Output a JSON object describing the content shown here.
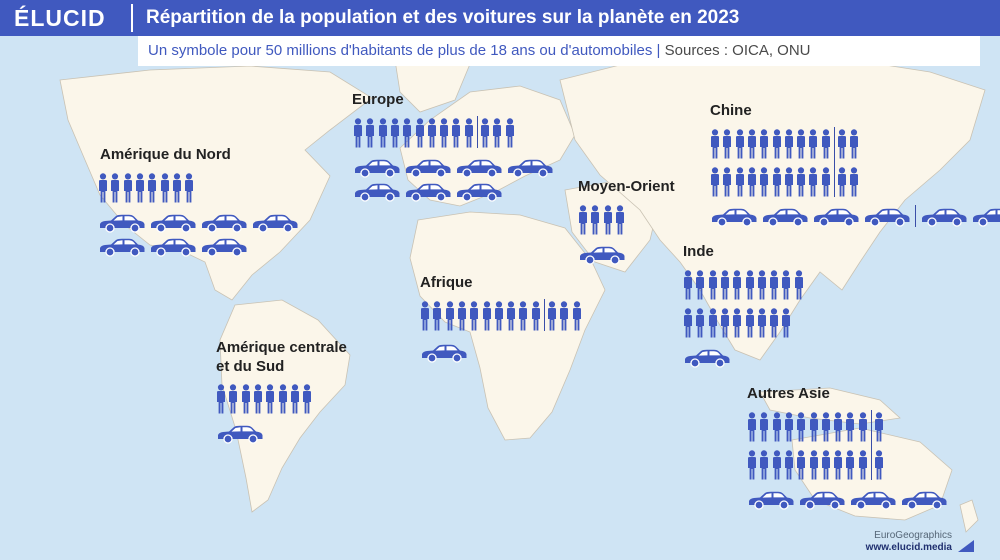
{
  "header": {
    "logo": "ÉLUCID",
    "title": "Répartition de la population et des voitures sur la planète en 2023"
  },
  "subtitle": {
    "text": "Un symbole pour 50 millions d'habitants de plus de 18 ans ou d'automobiles",
    "sources": "Sources : OICA, ONU"
  },
  "colors": {
    "header_bg": "#4059bf",
    "icon": "#4059bf",
    "ocean": "#cfe4f4",
    "land": "#fbf6ea"
  },
  "legend": {
    "unit_millions": 50,
    "person_icon": "person-icon",
    "car_icon": "car-icon"
  },
  "regions": [
    {
      "key": "amerique-du-nord",
      "label": [
        "Amérique du Nord"
      ],
      "people": 8,
      "cars": 7
    },
    {
      "key": "europe",
      "label": [
        "Europe"
      ],
      "people": 13,
      "cars": 7
    },
    {
      "key": "chine",
      "label": [
        "Chine"
      ],
      "people": 24,
      "cars": 6
    },
    {
      "key": "moyen-orient",
      "label": [
        "Moyen-Orient"
      ],
      "people": 4,
      "cars": 1
    },
    {
      "key": "inde",
      "label": [
        "Inde"
      ],
      "people": 19,
      "cars": 1
    },
    {
      "key": "afrique",
      "label": [
        "Afrique"
      ],
      "people": 13,
      "cars": 1
    },
    {
      "key": "amerique-centrale-et-du-sud",
      "label": [
        "Amérique centrale",
        "et du Sud"
      ],
      "people": 8,
      "cars": 1
    },
    {
      "key": "autres-asie",
      "label": [
        "Autres Asie"
      ],
      "people": 22,
      "cars": 4
    }
  ],
  "footer": {
    "credit": "EuroGeographics",
    "site": "www.elucid.media"
  }
}
